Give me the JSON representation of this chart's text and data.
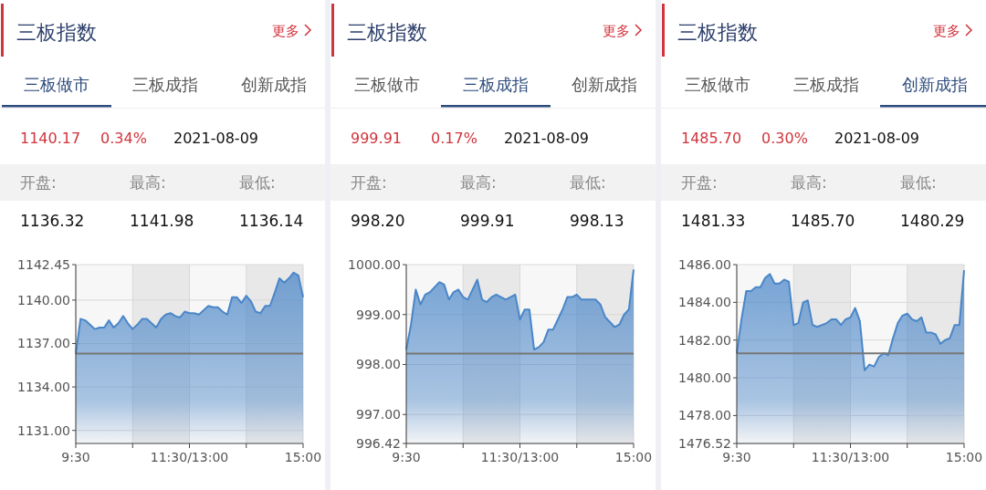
{
  "chart_data": [
    {
      "type": "area",
      "title": "三板指数",
      "color": "#4a86c8",
      "grid": true,
      "annotations": [
        "更多",
        "三板做市",
        "三板成指",
        "创新成指",
        "1140.17",
        "0.34%",
        "2021-08-09",
        "开盘:",
        "最高:",
        "最低:",
        "1136.32",
        "1141.98",
        "1136.14"
      ],
      "categories": [
        "9:30",
        null,
        null,
        null,
        null,
        null,
        null,
        null,
        null,
        null,
        null,
        null,
        null,
        null,
        null,
        null,
        null,
        null,
        null,
        null,
        null,
        null,
        null,
        null,
        "11:30/13:00",
        null,
        null,
        null,
        null,
        null,
        null,
        null,
        null,
        null,
        null,
        null,
        null,
        null,
        null,
        null,
        null,
        null,
        null,
        null,
        null,
        null,
        null,
        null,
        "15:00"
      ],
      "ylim": [
        1130.1,
        1142.45
      ],
      "yticks": [
        {
          "value": 1131,
          "label": "1131.00"
        },
        {
          "value": 1134,
          "label": "1134.00"
        },
        {
          "value": 1137,
          "label": "1137.00"
        },
        {
          "value": 1140,
          "label": "1140.00"
        },
        1142.45
      ],
      "ref_lines": [
        {
          "axis": "y",
          "value": 1136.3,
          "color": "#777777"
        }
      ],
      "values": [
        1136.3,
        1138.7,
        1138.6,
        1138.3,
        1138.0,
        1138.1,
        1138.1,
        1138.6,
        1138.1,
        1138.4,
        1138.9,
        1138.4,
        1138.0,
        1138.3,
        1138.7,
        1138.7,
        1138.4,
        1138.1,
        1138.7,
        1139.0,
        1139.1,
        1138.9,
        1138.8,
        1139.2,
        1139.1,
        1139.1,
        1139.0,
        1139.3,
        1139.6,
        1139.5,
        1139.5,
        1139.2,
        1139.0,
        1140.2,
        1140.2,
        1139.8,
        1140.3,
        1139.9,
        1139.2,
        1139.1,
        1139.6,
        1139.6,
        1140.5,
        1141.5,
        1141.2,
        1141.5,
        1141.9,
        1141.7,
        1140.2
      ]
    },
    {
      "type": "area",
      "title": "三板指数",
      "color": "#4a86c8",
      "grid": true,
      "annotations": [
        "更多",
        "三板做市",
        "三板成指",
        "创新成指",
        "999.91",
        "0.17%",
        "2021-08-09",
        "开盘:",
        "最高:",
        "最低:",
        "998.20",
        "999.91",
        "998.13"
      ],
      "categories": [
        "9:30",
        null,
        null,
        null,
        null,
        null,
        null,
        null,
        null,
        null,
        null,
        null,
        null,
        null,
        null,
        null,
        null,
        null,
        null,
        null,
        null,
        null,
        null,
        null,
        "11:30/13:00",
        null,
        null,
        null,
        null,
        null,
        null,
        null,
        null,
        null,
        null,
        null,
        null,
        null,
        null,
        null,
        null,
        null,
        null,
        null,
        null,
        null,
        null,
        null,
        "15:00"
      ],
      "ylim": [
        996.42,
        1000
      ],
      "yticks": [
        996.42,
        {
          "value": 997,
          "label": "997.00"
        },
        {
          "value": 998,
          "label": "998.00"
        },
        {
          "value": 999,
          "label": "999.00"
        },
        {
          "value": 1000,
          "label": "1000.00"
        }
      ],
      "ref_lines": [
        {
          "axis": "y",
          "value": 998.22,
          "color": "#777777"
        }
      ],
      "values": [
        998.3,
        998.8,
        999.5,
        999.2,
        999.4,
        999.45,
        999.55,
        999.65,
        999.6,
        999.3,
        999.45,
        999.5,
        999.35,
        999.3,
        999.5,
        999.7,
        999.3,
        999.25,
        999.35,
        999.4,
        999.35,
        999.3,
        999.35,
        999.4,
        998.9,
        999.1,
        999.1,
        998.3,
        998.35,
        998.45,
        998.7,
        998.7,
        998.9,
        999.1,
        999.35,
        999.35,
        999.4,
        999.3,
        999.3,
        999.3,
        999.3,
        999.2,
        998.95,
        998.85,
        998.75,
        998.8,
        999.0,
        999.1,
        999.9
      ]
    },
    {
      "type": "area",
      "title": "三板指数",
      "color": "#4a86c8",
      "grid": true,
      "annotations": [
        "更多",
        "三板做市",
        "三板成指",
        "创新成指",
        "1485.70",
        "0.30%",
        "2021-08-09",
        "开盘:",
        "最高:",
        "最低:",
        "1481.33",
        "1485.70",
        "1480.29"
      ],
      "categories": [
        "9:30",
        null,
        null,
        null,
        null,
        null,
        null,
        null,
        null,
        null,
        null,
        null,
        null,
        null,
        null,
        null,
        null,
        null,
        null,
        null,
        null,
        null,
        null,
        null,
        "11:30/13:00",
        null,
        null,
        null,
        null,
        null,
        null,
        null,
        null,
        null,
        null,
        null,
        null,
        null,
        null,
        null,
        null,
        null,
        null,
        null,
        null,
        null,
        null,
        null,
        "15:00"
      ],
      "ylim": [
        1476.52,
        1486
      ],
      "yticks": [
        1476.52,
        {
          "value": 1478,
          "label": "1478.00"
        },
        {
          "value": 1480,
          "label": "1480.00"
        },
        {
          "value": 1482,
          "label": "1482.00"
        },
        {
          "value": 1484,
          "label": "1484.00"
        },
        {
          "value": 1486,
          "label": "1486.00"
        }
      ],
      "ref_lines": [
        {
          "axis": "y",
          "value": 1481.3,
          "color": "#777777"
        }
      ],
      "values": [
        1481.3,
        1483.1,
        1484.6,
        1484.6,
        1484.8,
        1484.8,
        1485.3,
        1485.5,
        1485.0,
        1485.0,
        1485.2,
        1485.1,
        1482.8,
        1482.9,
        1484.0,
        1484.1,
        1482.8,
        1482.7,
        1482.8,
        1482.9,
        1483.1,
        1483.1,
        1482.8,
        1483.1,
        1483.2,
        1483.7,
        1483.0,
        1480.4,
        1480.7,
        1480.6,
        1481.1,
        1481.3,
        1481.2,
        1482.1,
        1482.9,
        1483.3,
        1483.4,
        1483.1,
        1483.0,
        1483.2,
        1482.4,
        1482.4,
        1482.3,
        1481.8,
        1482.0,
        1482.1,
        1482.8,
        1482.8,
        1485.7
      ]
    }
  ]
}
